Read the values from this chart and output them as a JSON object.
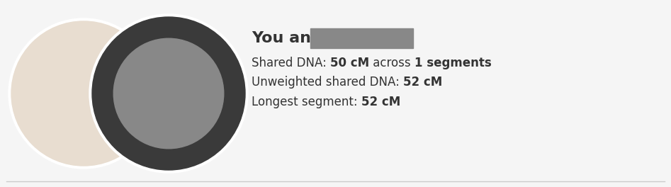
{
  "background_color": "#f5f5f5",
  "text_color": "#333333",
  "title_text": "You and ",
  "redacted_box_color": "#888888",
  "title_fontsize": 16,
  "text_fontsize": 12,
  "avatar1_color": "#e8ddd0",
  "avatar2_color_outer": "#3a3a3a",
  "avatar2_color_inner": "#888888",
  "bottom_line_color": "#cccccc",
  "white": "#ffffff",
  "line1_parts": [
    [
      "Shared DNA: ",
      false
    ],
    [
      "50 cM",
      true
    ],
    [
      " across ",
      false
    ],
    [
      "1 segments",
      true
    ]
  ],
  "line2_parts": [
    [
      "Unweighted shared DNA: ",
      false
    ],
    [
      "52 cM",
      true
    ]
  ],
  "line3_parts": [
    [
      "Longest segment: ",
      false
    ],
    [
      "52 cM",
      true
    ]
  ]
}
